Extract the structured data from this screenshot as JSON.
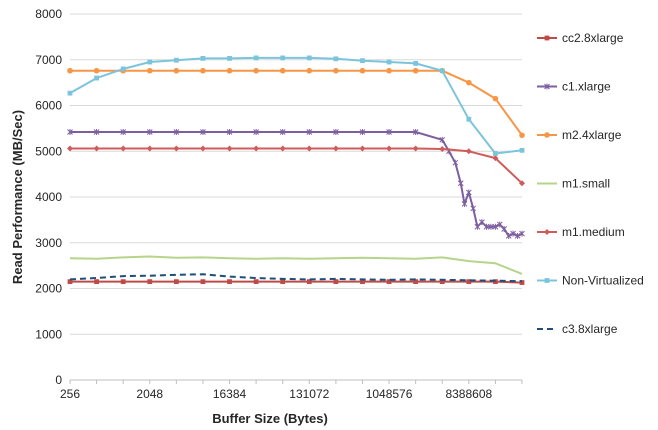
{
  "chart_data": {
    "type": "line",
    "title": "",
    "xlabel": "Buffer Size (Bytes)",
    "ylabel": "Read Performance (MB/Sec)",
    "ylim": [
      0,
      8000
    ],
    "yticks": [
      "0",
      "1000",
      "2000",
      "3000",
      "4000",
      "5000",
      "6000",
      "7000",
      "8000"
    ],
    "xticks": [
      {
        "label": "256",
        "log2": 8
      },
      {
        "label": "2048",
        "log2": 11
      },
      {
        "label": "16384",
        "log2": 14
      },
      {
        "label": "131072",
        "log2": 17
      },
      {
        "label": "1048576",
        "log2": 20
      },
      {
        "label": "8388608",
        "log2": 23
      }
    ],
    "x_scale": "log2",
    "grid": "horizontal",
    "legend_position": "right",
    "series": [
      {
        "name": "cc2.8xlarge",
        "color": "#be4b48",
        "marker": "square",
        "dash": false,
        "x": [
          256,
          512,
          1024,
          2048,
          4096,
          8192,
          16384,
          32768,
          65536,
          131072,
          262144,
          524288,
          1048576,
          2097152,
          4194304,
          8388608,
          16777216,
          33554432
        ],
        "values": [
          2150,
          2150,
          2150,
          2150,
          2150,
          2150,
          2150,
          2150,
          2150,
          2150,
          2150,
          2150,
          2150,
          2150,
          2150,
          2150,
          2150,
          2130
        ]
      },
      {
        "name": "c1.xlarge",
        "color": "#7d5fa0",
        "marker": "star",
        "dash": false,
        "x": [
          256,
          512,
          1024,
          2048,
          4096,
          8192,
          16384,
          32768,
          65536,
          131072,
          262144,
          524288,
          1048576,
          2097152,
          4194304,
          5000000,
          5900000,
          6800000,
          7500000,
          8388608,
          9400000,
          10500000,
          11800000,
          13300000,
          14900000,
          16777216,
          18800000,
          21100000,
          23700000,
          26600000,
          29900000,
          33554432
        ],
        "values": [
          5420,
          5420,
          5420,
          5420,
          5420,
          5420,
          5420,
          5420,
          5420,
          5420,
          5420,
          5420,
          5420,
          5420,
          5250,
          5000,
          4750,
          4300,
          3850,
          4100,
          3750,
          3350,
          3450,
          3350,
          3350,
          3350,
          3400,
          3300,
          3150,
          3200,
          3150,
          3200
        ]
      },
      {
        "name": "m2.4xlarge",
        "color": "#f79646",
        "marker": "circle",
        "dash": false,
        "x": [
          256,
          512,
          1024,
          2048,
          4096,
          8192,
          16384,
          32768,
          65536,
          131072,
          262144,
          524288,
          1048576,
          2097152,
          4194304,
          8388608,
          16777216,
          33554432
        ],
        "values": [
          6760,
          6760,
          6760,
          6760,
          6760,
          6760,
          6760,
          6760,
          6760,
          6760,
          6760,
          6760,
          6760,
          6760,
          6760,
          6500,
          6150,
          5350
        ]
      },
      {
        "name": "m1.small",
        "color": "#b6d48a",
        "marker": "none",
        "dash": false,
        "x": [
          256,
          512,
          1024,
          2048,
          4096,
          8192,
          16384,
          32768,
          65536,
          131072,
          262144,
          524288,
          1048576,
          2097152,
          4194304,
          8388608,
          16777216,
          33554432
        ],
        "values": [
          2660,
          2650,
          2680,
          2700,
          2670,
          2680,
          2660,
          2650,
          2660,
          2650,
          2660,
          2670,
          2660,
          2650,
          2680,
          2600,
          2550,
          2320
        ]
      },
      {
        "name": "m1.medium",
        "color": "#d05b5b",
        "marker": "diamond",
        "dash": false,
        "x": [
          256,
          512,
          1024,
          2048,
          4096,
          8192,
          16384,
          32768,
          65536,
          131072,
          262144,
          524288,
          1048576,
          2097152,
          4194304,
          8388608,
          16777216,
          33554432
        ],
        "values": [
          5060,
          5060,
          5060,
          5060,
          5060,
          5060,
          5060,
          5060,
          5060,
          5060,
          5060,
          5060,
          5060,
          5060,
          5050,
          5000,
          4850,
          4300
        ]
      },
      {
        "name": "Non-Virtualized",
        "color": "#7cc4dc",
        "marker": "square",
        "dash": false,
        "x": [
          256,
          512,
          1024,
          2048,
          4096,
          8192,
          16384,
          32768,
          65536,
          131072,
          262144,
          524288,
          1048576,
          2097152,
          4194304,
          8388608,
          16777216,
          33554432
        ],
        "values": [
          6270,
          6600,
          6800,
          6950,
          6990,
          7030,
          7030,
          7040,
          7040,
          7040,
          7020,
          6980,
          6950,
          6920,
          6760,
          5700,
          4950,
          5020
        ]
      },
      {
        "name": "c3.8xlarge",
        "color": "#1f4e79",
        "marker": "none",
        "dash": true,
        "x": [
          256,
          512,
          1024,
          2048,
          4096,
          8192,
          16384,
          32768,
          65536,
          131072,
          262144,
          524288,
          1048576,
          2097152,
          4194304,
          8388608,
          16777216,
          33554432
        ],
        "values": [
          2200,
          2230,
          2270,
          2280,
          2300,
          2310,
          2260,
          2230,
          2210,
          2200,
          2210,
          2200,
          2190,
          2200,
          2190,
          2180,
          2170,
          2160
        ]
      }
    ]
  }
}
